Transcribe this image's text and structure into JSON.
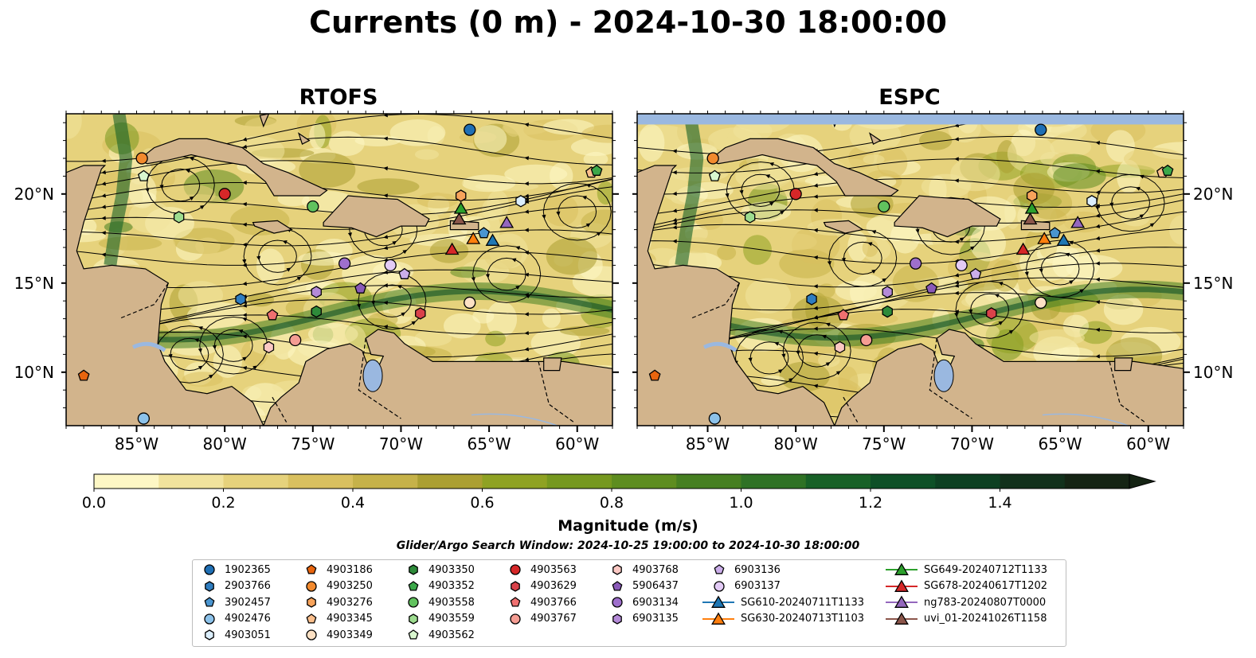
{
  "title": "Currents (0 m) - 2024-10-30 18:00:00",
  "panels": [
    {
      "title": "RTOFS",
      "zero_edge": true
    },
    {
      "title": "ESPC",
      "zero_edge": false
    }
  ],
  "map_extent": {
    "lon_min": -89,
    "lon_max": -58,
    "lat_min": 7,
    "lat_max": 24.5
  },
  "lon_ticks": [
    "85°W",
    "80°W",
    "75°W",
    "70°W",
    "65°W",
    "60°W"
  ],
  "lat_ticks": [
    "20°N",
    "15°N",
    "10°N"
  ],
  "lon_tick_values": [
    -85,
    -80,
    -75,
    -70,
    -65,
    -60
  ],
  "lat_tick_values": [
    20,
    15,
    10
  ],
  "colorbar": {
    "label": "Magnitude (m/s)",
    "ticks": [
      "0.0",
      "0.2",
      "0.4",
      "0.6",
      "0.8",
      "1.0",
      "1.2",
      "1.4"
    ],
    "range": [
      0,
      1.6
    ],
    "extend": "max",
    "colors": [
      "#fdf7c5",
      "#f1e39d",
      "#e6d27c",
      "#d9c05f",
      "#c6b249",
      "#ab9f32",
      "#8fa223",
      "#76981f",
      "#5e8d20",
      "#467f21",
      "#2f7225",
      "#186127",
      "#0e5027",
      "#0d4022",
      "#12311c",
      "#152414"
    ]
  },
  "search_window": "Glider/Argo Search Window: 2024-10-25 19:00:00 to 2024-10-30 18:00:00",
  "land_color": "#d2b48c",
  "water_color": "#9ab8e0",
  "legend": [
    {
      "label": "1902365",
      "marker": "circle",
      "color": "#1f6fb4",
      "lon": -66.1,
      "lat": 23.6
    },
    {
      "label": "2903766",
      "marker": "hexagon",
      "color": "#2f7dc0",
      "lon": -79.1,
      "lat": 14.1
    },
    {
      "label": "3902457",
      "marker": "pentagon",
      "color": "#4a95d0",
      "lon": -65.3,
      "lat": 17.8
    },
    {
      "label": "4902476",
      "marker": "circle",
      "color": "#8cc2ea",
      "lon": -84.6,
      "lat": 7.4
    },
    {
      "label": "4903051",
      "marker": "hexagon",
      "color": "#dbeefc",
      "lon": -63.2,
      "lat": 19.6
    },
    {
      "label": "4903186",
      "marker": "pentagon",
      "color": "#e8650e",
      "lon": -88.0,
      "lat": 9.8
    },
    {
      "label": "4903250",
      "marker": "circle",
      "color": "#f28a2e",
      "lon": -84.7,
      "lat": 22.0
    },
    {
      "label": "4903276",
      "marker": "hexagon",
      "color": "#f7a35b",
      "lon": -66.6,
      "lat": 19.9
    },
    {
      "label": "4903345",
      "marker": "pentagon",
      "color": "#fbbf8c",
      "lon": -59.2,
      "lat": 21.2
    },
    {
      "label": "4903349",
      "marker": "circle",
      "color": "#fde1c4",
      "lon": -66.1,
      "lat": 13.9
    },
    {
      "label": "4903350",
      "marker": "hexagon",
      "color": "#2e8b3a",
      "lon": -74.8,
      "lat": 13.4
    },
    {
      "label": "4903352",
      "marker": "pentagon",
      "color": "#3ca84a",
      "lon": -58.9,
      "lat": 21.3
    },
    {
      "label": "4903558",
      "marker": "circle",
      "color": "#61c25e",
      "lon": -75.0,
      "lat": 19.3
    },
    {
      "label": "4903559",
      "marker": "hexagon",
      "color": "#9ddc8f",
      "lon": -82.6,
      "lat": 18.7
    },
    {
      "label": "4903562",
      "marker": "pentagon",
      "color": "#d9f7cf",
      "lon": -84.6,
      "lat": 21.0
    },
    {
      "label": "4903563",
      "marker": "circle",
      "color": "#d62728",
      "lon": -80.0,
      "lat": 20.0
    },
    {
      "label": "4903629",
      "marker": "hexagon",
      "color": "#d9424a",
      "lon": -68.9,
      "lat": 13.3
    },
    {
      "label": "4903766",
      "marker": "pentagon",
      "color": "#ef7070",
      "lon": -77.3,
      "lat": 13.2
    },
    {
      "label": "4903767",
      "marker": "circle",
      "color": "#f59d93",
      "lon": -76.0,
      "lat": 11.8
    },
    {
      "label": "4903768",
      "marker": "hexagon",
      "color": "#fbc8c3",
      "lon": -77.5,
      "lat": 11.4
    },
    {
      "label": "5906437",
      "marker": "pentagon",
      "color": "#8a5ab8",
      "lon": -72.3,
      "lat": 14.7
    },
    {
      "label": "6903134",
      "marker": "circle",
      "color": "#9e6fcc",
      "lon": -73.2,
      "lat": 16.1
    },
    {
      "label": "6903135",
      "marker": "hexagon",
      "color": "#b48ad8",
      "lon": -74.8,
      "lat": 14.5
    },
    {
      "label": "6903136",
      "marker": "pentagon",
      "color": "#cbaeea",
      "lon": -69.8,
      "lat": 15.5
    },
    {
      "label": "6903137",
      "marker": "circle",
      "color": "#e3cbf6",
      "lon": -70.6,
      "lat": 16.0
    },
    {
      "label": "SG610-20240711T1133",
      "marker": "triangle",
      "color": "#1f77b4",
      "line": true,
      "lon": -64.8,
      "lat": 17.4
    },
    {
      "label": "SG630-20240713T1103",
      "marker": "triangle",
      "color": "#ff7f0e",
      "line": true,
      "lon": -65.9,
      "lat": 17.5
    },
    {
      "label": "SG649-20240712T1133",
      "marker": "triangle",
      "color": "#2ca02c",
      "line": true,
      "lon": -66.6,
      "lat": 19.2
    },
    {
      "label": "SG678-20240617T1202",
      "marker": "triangle",
      "color": "#d62728",
      "line": true,
      "lon": -67.1,
      "lat": 16.9
    },
    {
      "label": "ng783-20240807T0000",
      "marker": "triangle",
      "color": "#9467bd",
      "line": true,
      "lon": -64.0,
      "lat": 18.4
    },
    {
      "label": "uvi_01-20241026T1158",
      "marker": "triangle",
      "color": "#8c564b",
      "line": true,
      "lon": -66.7,
      "lat": 18.6
    }
  ]
}
